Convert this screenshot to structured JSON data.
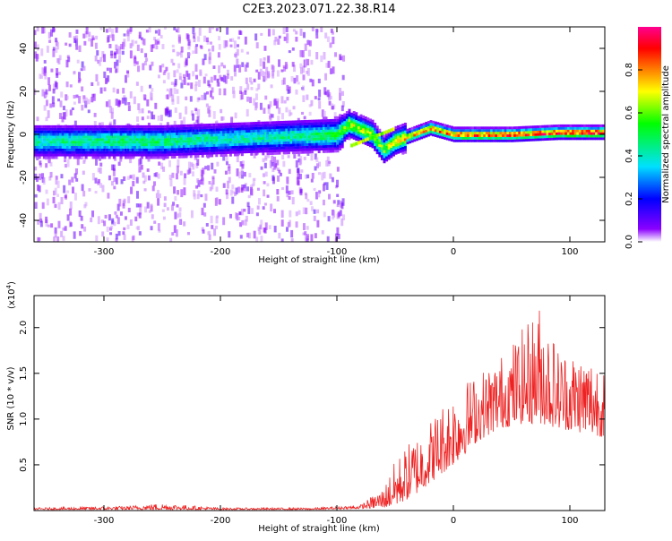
{
  "title": "C2E3.2023.071.22.38.R14",
  "chart_data": [
    {
      "type": "heatmap",
      "xlabel": "Height of straight line (km)",
      "ylabel": "Frequency (Hz)",
      "xlim": [
        -360,
        130
      ],
      "ylim": [
        -50,
        50
      ],
      "xticks": [
        -300,
        -200,
        -100,
        0,
        100
      ],
      "yticks": [
        -40,
        -20,
        0,
        20,
        40
      ],
      "colorbar": {
        "label": "Normalized spectral amplitude",
        "range": [
          0.0,
          1.0
        ],
        "ticks": [
          "0.0",
          "0.2",
          "0.4",
          "0.6",
          "0.8"
        ],
        "colormap": [
          "#ffffff",
          "#8a00ff",
          "#0000ff",
          "#00e0ff",
          "#00ff00",
          "#ffff00",
          "#ff8000",
          "#ff0000",
          "#ff0090"
        ]
      },
      "ridge": [
        {
          "x": -360,
          "freq": -3,
          "amp": 0.45
        },
        {
          "x": -300,
          "freq": -3,
          "amp": 0.5
        },
        {
          "x": -250,
          "freq": -3,
          "amp": 0.5
        },
        {
          "x": -200,
          "freq": -2,
          "amp": 0.45
        },
        {
          "x": -150,
          "freq": -1,
          "amp": 0.45
        },
        {
          "x": -100,
          "freq": 0,
          "amp": 0.55
        },
        {
          "x": -90,
          "freq": 5,
          "amp": 0.7
        },
        {
          "x": -70,
          "freq": 0,
          "amp": 0.7
        },
        {
          "x": -60,
          "freq": -7,
          "amp": 0.65
        },
        {
          "x": -50,
          "freq": -3,
          "amp": 0.75
        },
        {
          "x": -40,
          "freq": -1,
          "amp": 0.8
        },
        {
          "x": -20,
          "freq": 3,
          "amp": 0.85
        },
        {
          "x": 0,
          "freq": 0,
          "amp": 0.9
        },
        {
          "x": 50,
          "freq": 0,
          "amp": 0.95
        },
        {
          "x": 90,
          "freq": 1,
          "amp": 0.97
        },
        {
          "x": 130,
          "freq": 1,
          "amp": 0.97
        }
      ]
    },
    {
      "type": "line",
      "xlabel": "Height of straight line (km)",
      "ylabel": "SNR (10 * v/v)",
      "yunit": "(x10",
      "yunit_exponent": "4",
      "yunit_close": ")",
      "xlim": [
        -360,
        130
      ],
      "ylim": [
        0,
        2.35
      ],
      "xticks": [
        -300,
        -200,
        -100,
        0,
        100
      ],
      "yticks": [
        0.5,
        1.0,
        1.5,
        2.0
      ],
      "color": "#ee2222",
      "envelope": [
        {
          "x": -360,
          "low": 0.01,
          "high": 0.03
        },
        {
          "x": -280,
          "low": 0.01,
          "high": 0.05
        },
        {
          "x": -250,
          "low": 0.01,
          "high": 0.08
        },
        {
          "x": -200,
          "low": 0.01,
          "high": 0.03
        },
        {
          "x": -120,
          "low": 0.01,
          "high": 0.03
        },
        {
          "x": -80,
          "low": 0.02,
          "high": 0.06
        },
        {
          "x": -60,
          "low": 0.03,
          "high": 0.25
        },
        {
          "x": -50,
          "low": 0.05,
          "high": 0.55
        },
        {
          "x": -35,
          "low": 0.15,
          "high": 0.8
        },
        {
          "x": -20,
          "low": 0.3,
          "high": 1.0
        },
        {
          "x": 0,
          "low": 0.5,
          "high": 1.35
        },
        {
          "x": 20,
          "low": 0.75,
          "high": 1.5
        },
        {
          "x": 40,
          "low": 0.9,
          "high": 1.7
        },
        {
          "x": 60,
          "low": 0.95,
          "high": 2.0
        },
        {
          "x": 75,
          "low": 0.95,
          "high": 2.3
        },
        {
          "x": 90,
          "low": 0.9,
          "high": 1.8
        },
        {
          "x": 110,
          "low": 0.85,
          "high": 1.75
        },
        {
          "x": 130,
          "low": 0.8,
          "high": 1.7
        }
      ]
    }
  ]
}
